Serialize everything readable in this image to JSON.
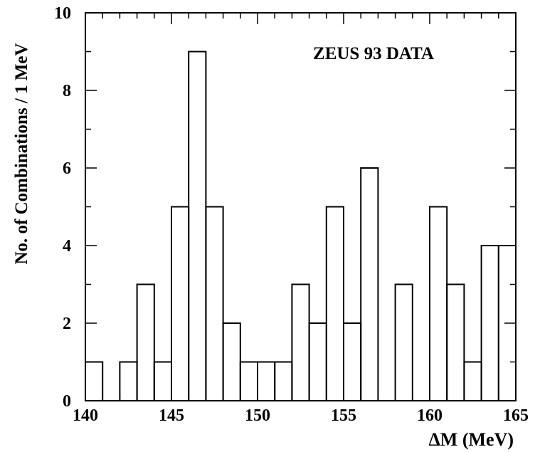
{
  "chart_data": {
    "type": "bar",
    "title": "ZEUS 93 DATA",
    "xlabel": "ΔM (MeV)",
    "ylabel": "No. of Combinations / 1 MeV",
    "xlim": [
      140,
      165
    ],
    "ylim": [
      0,
      10
    ],
    "x_ticks": [
      140,
      145,
      150,
      155,
      160,
      165
    ],
    "y_ticks": [
      0,
      2,
      4,
      6,
      8,
      10
    ],
    "bin_width": 1,
    "bin_edges": [
      140,
      141,
      142,
      143,
      144,
      145,
      146,
      147,
      148,
      149,
      150,
      151,
      152,
      153,
      154,
      155,
      156,
      157,
      158,
      159,
      160,
      161,
      162,
      163,
      164,
      165
    ],
    "values": [
      1,
      0,
      1,
      3,
      1,
      5,
      9,
      5,
      2,
      1,
      1,
      1,
      3,
      2,
      5,
      2,
      6,
      0,
      3,
      0,
      5,
      3,
      1,
      4,
      4
    ],
    "grid": false,
    "style": "step histogram, black outline"
  }
}
